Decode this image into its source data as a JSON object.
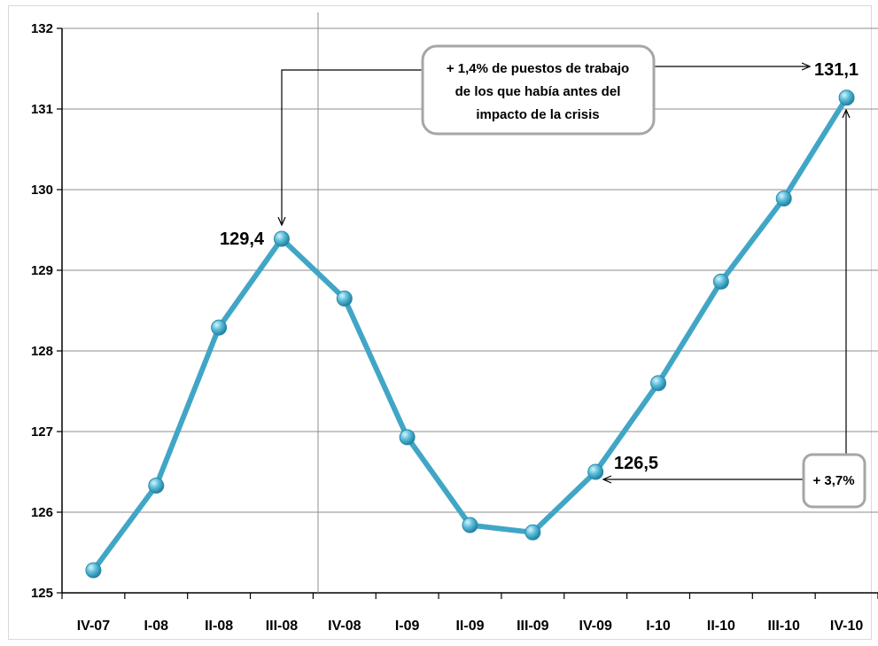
{
  "chart_data": {
    "type": "line",
    "title": "",
    "xlabel": "",
    "ylabel": "",
    "categories": [
      "IV-07",
      "I-08",
      "II-08",
      "III-08",
      "IV-08",
      "I-09",
      "II-09",
      "III-09",
      "IV-09",
      "I-10",
      "II-10",
      "III-10",
      "IV-10"
    ],
    "series": [
      {
        "values": [
          125.28,
          126.33,
          128.29,
          129.39,
          128.65,
          126.93,
          125.84,
          125.75,
          126.5,
          127.6,
          128.86,
          129.89,
          131.14
        ]
      }
    ],
    "ylim": [
      125,
      132
    ],
    "yticks": [
      "125",
      "126",
      "127",
      "128",
      "129",
      "130",
      "131",
      "132"
    ],
    "grid": true,
    "legend": "none",
    "line_color": "#41a6c6",
    "marker_color": "#3fa7c8",
    "annotations": {
      "peak_label": "129,4",
      "trough_label": "126,5",
      "end_label": "131,1",
      "callout_top": [
        "+ 1,4% de puestos de trabajo",
        "de los que había antes del",
        "impacto de la crisis"
      ],
      "callout_right": "+ 3,7%"
    }
  }
}
